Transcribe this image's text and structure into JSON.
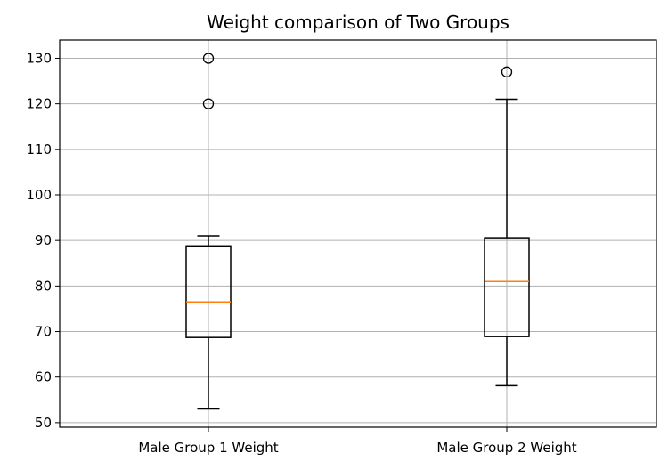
{
  "chart_data": {
    "type": "box",
    "title": "Weight comparison of Two Groups",
    "xlabel": "",
    "ylabel": "",
    "ylim": [
      49,
      134
    ],
    "yticks": [
      50,
      60,
      70,
      80,
      90,
      100,
      110,
      120,
      130
    ],
    "grid": true,
    "categories": [
      "Male Group 1 Weight",
      "Male Group 2 Weight"
    ],
    "boxes": [
      {
        "q1": 68.7,
        "median": 76.5,
        "q3": 88.8,
        "whisker_low": 53,
        "whisker_high": 91,
        "outliers": [
          120,
          130
        ]
      },
      {
        "q1": 68.9,
        "median": 81,
        "q3": 90.6,
        "whisker_low": 58.1,
        "whisker_high": 121,
        "outliers": [
          127
        ]
      }
    ],
    "colors": {
      "median": "#ff7f0e",
      "box": "#000000",
      "grid": "#b0b0b0"
    }
  }
}
